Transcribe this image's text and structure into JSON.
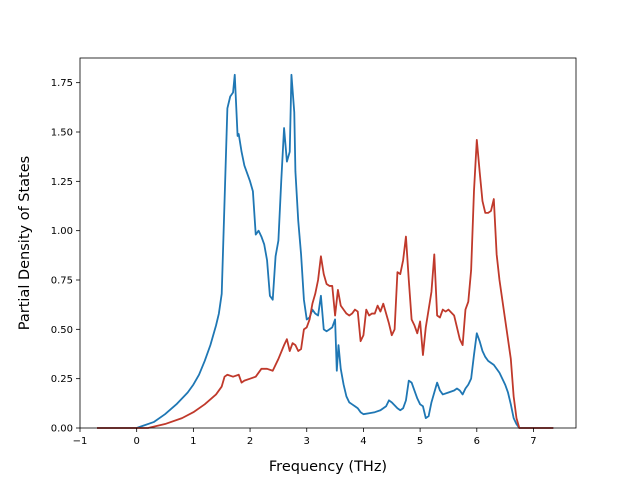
{
  "chart_data": {
    "type": "line",
    "title": "",
    "xlabel": "Frequency (THz)",
    "ylabel": "Partial Density of States",
    "xlim": [
      -1.0,
      7.75
    ],
    "ylim": [
      0.0,
      1.875
    ],
    "xticks": [
      -1,
      0,
      1,
      2,
      3,
      4,
      5,
      6,
      7
    ],
    "yticks": [
      0.0,
      0.25,
      0.5,
      0.75,
      1.0,
      1.25,
      1.5,
      1.75
    ],
    "ytick_labels": [
      "0.00",
      "0.25",
      "0.50",
      "0.75",
      "1.00",
      "1.25",
      "1.50",
      "1.75"
    ],
    "xtick_labels": [
      "−1",
      "0",
      "1",
      "2",
      "3",
      "4",
      "5",
      "6",
      "7"
    ],
    "grid": false,
    "legend": "none",
    "series": [
      {
        "color": "#1f77b4",
        "x": [
          -0.7,
          0.0,
          0.1,
          0.3,
          0.5,
          0.7,
          0.9,
          1.0,
          1.1,
          1.2,
          1.3,
          1.4,
          1.45,
          1.5,
          1.55,
          1.6,
          1.65,
          1.7,
          1.73,
          1.78,
          1.8,
          1.85,
          1.9,
          2.0,
          2.05,
          2.1,
          2.15,
          2.2,
          2.25,
          2.3,
          2.35,
          2.4,
          2.45,
          2.5,
          2.55,
          2.6,
          2.65,
          2.7,
          2.73,
          2.78,
          2.8,
          2.85,
          2.9,
          2.95,
          3.0,
          3.05,
          3.1,
          3.15,
          3.2,
          3.25,
          3.3,
          3.35,
          3.4,
          3.45,
          3.5,
          3.53,
          3.56,
          3.6,
          3.65,
          3.7,
          3.75,
          3.8,
          3.85,
          3.9,
          3.95,
          4.0,
          4.1,
          4.2,
          4.3,
          4.4,
          4.45,
          4.5,
          4.6,
          4.65,
          4.7,
          4.75,
          4.8,
          4.85,
          4.9,
          4.95,
          5.0,
          5.05,
          5.1,
          5.15,
          5.2,
          5.25,
          5.3,
          5.35,
          5.4,
          5.5,
          5.6,
          5.65,
          5.7,
          5.75,
          5.8,
          5.85,
          5.9,
          5.95,
          6.0,
          6.05,
          6.1,
          6.15,
          6.2,
          6.3,
          6.4,
          6.5,
          6.55,
          6.6,
          6.65,
          6.7,
          6.75,
          6.8,
          7.35
        ],
        "y": [
          0.0,
          0.0,
          0.01,
          0.03,
          0.07,
          0.12,
          0.18,
          0.22,
          0.27,
          0.34,
          0.42,
          0.52,
          0.58,
          0.68,
          1.15,
          1.62,
          1.68,
          1.7,
          1.79,
          1.48,
          1.49,
          1.4,
          1.33,
          1.25,
          1.2,
          0.98,
          1.0,
          0.97,
          0.93,
          0.85,
          0.67,
          0.65,
          0.87,
          0.95,
          1.25,
          1.52,
          1.35,
          1.4,
          1.79,
          1.6,
          1.3,
          1.05,
          0.88,
          0.65,
          0.55,
          0.56,
          0.6,
          0.58,
          0.57,
          0.67,
          0.5,
          0.49,
          0.5,
          0.51,
          0.55,
          0.29,
          0.42,
          0.3,
          0.22,
          0.16,
          0.13,
          0.12,
          0.11,
          0.1,
          0.08,
          0.07,
          0.075,
          0.08,
          0.09,
          0.11,
          0.14,
          0.13,
          0.1,
          0.09,
          0.1,
          0.14,
          0.24,
          0.23,
          0.19,
          0.15,
          0.12,
          0.11,
          0.05,
          0.06,
          0.13,
          0.18,
          0.23,
          0.19,
          0.17,
          0.18,
          0.19,
          0.2,
          0.19,
          0.17,
          0.2,
          0.22,
          0.25,
          0.37,
          0.48,
          0.44,
          0.39,
          0.36,
          0.34,
          0.32,
          0.28,
          0.22,
          0.18,
          0.12,
          0.05,
          0.02,
          0.0,
          0.0,
          0.0
        ]
      },
      {
        "color": "#c0392b",
        "x": [
          -0.7,
          0.2,
          0.5,
          0.8,
          1.0,
          1.2,
          1.4,
          1.5,
          1.55,
          1.6,
          1.7,
          1.8,
          1.85,
          1.9,
          2.0,
          2.1,
          2.2,
          2.3,
          2.4,
          2.5,
          2.6,
          2.65,
          2.7,
          2.75,
          2.8,
          2.85,
          2.9,
          2.95,
          3.0,
          3.05,
          3.1,
          3.15,
          3.2,
          3.25,
          3.3,
          3.35,
          3.4,
          3.45,
          3.5,
          3.55,
          3.6,
          3.65,
          3.7,
          3.75,
          3.8,
          3.85,
          3.9,
          3.95,
          4.0,
          4.05,
          4.1,
          4.15,
          4.2,
          4.25,
          4.3,
          4.35,
          4.4,
          4.45,
          4.5,
          4.55,
          4.6,
          4.65,
          4.7,
          4.75,
          4.8,
          4.85,
          4.9,
          4.95,
          5.0,
          5.05,
          5.1,
          5.15,
          5.2,
          5.25,
          5.3,
          5.35,
          5.4,
          5.45,
          5.5,
          5.6,
          5.7,
          5.75,
          5.8,
          5.85,
          5.9,
          5.95,
          6.0,
          6.05,
          6.1,
          6.15,
          6.2,
          6.25,
          6.3,
          6.35,
          6.4,
          6.5,
          6.6,
          6.65,
          6.7,
          6.75,
          7.35
        ],
        "y": [
          0.0,
          0.0,
          0.02,
          0.05,
          0.08,
          0.12,
          0.17,
          0.21,
          0.26,
          0.27,
          0.26,
          0.27,
          0.23,
          0.24,
          0.25,
          0.26,
          0.3,
          0.3,
          0.29,
          0.35,
          0.42,
          0.45,
          0.39,
          0.43,
          0.42,
          0.39,
          0.4,
          0.5,
          0.51,
          0.55,
          0.63,
          0.68,
          0.75,
          0.87,
          0.78,
          0.73,
          0.72,
          0.72,
          0.57,
          0.7,
          0.62,
          0.6,
          0.58,
          0.57,
          0.58,
          0.6,
          0.59,
          0.44,
          0.47,
          0.6,
          0.57,
          0.58,
          0.58,
          0.62,
          0.59,
          0.63,
          0.58,
          0.53,
          0.47,
          0.5,
          0.79,
          0.78,
          0.85,
          0.97,
          0.75,
          0.55,
          0.52,
          0.48,
          0.54,
          0.37,
          0.51,
          0.6,
          0.69,
          0.88,
          0.57,
          0.56,
          0.6,
          0.59,
          0.6,
          0.57,
          0.45,
          0.42,
          0.6,
          0.64,
          0.8,
          1.2,
          1.46,
          1.3,
          1.15,
          1.09,
          1.09,
          1.1,
          1.16,
          0.88,
          0.75,
          0.55,
          0.35,
          0.16,
          0.05,
          0.0,
          0.0
        ]
      }
    ]
  }
}
